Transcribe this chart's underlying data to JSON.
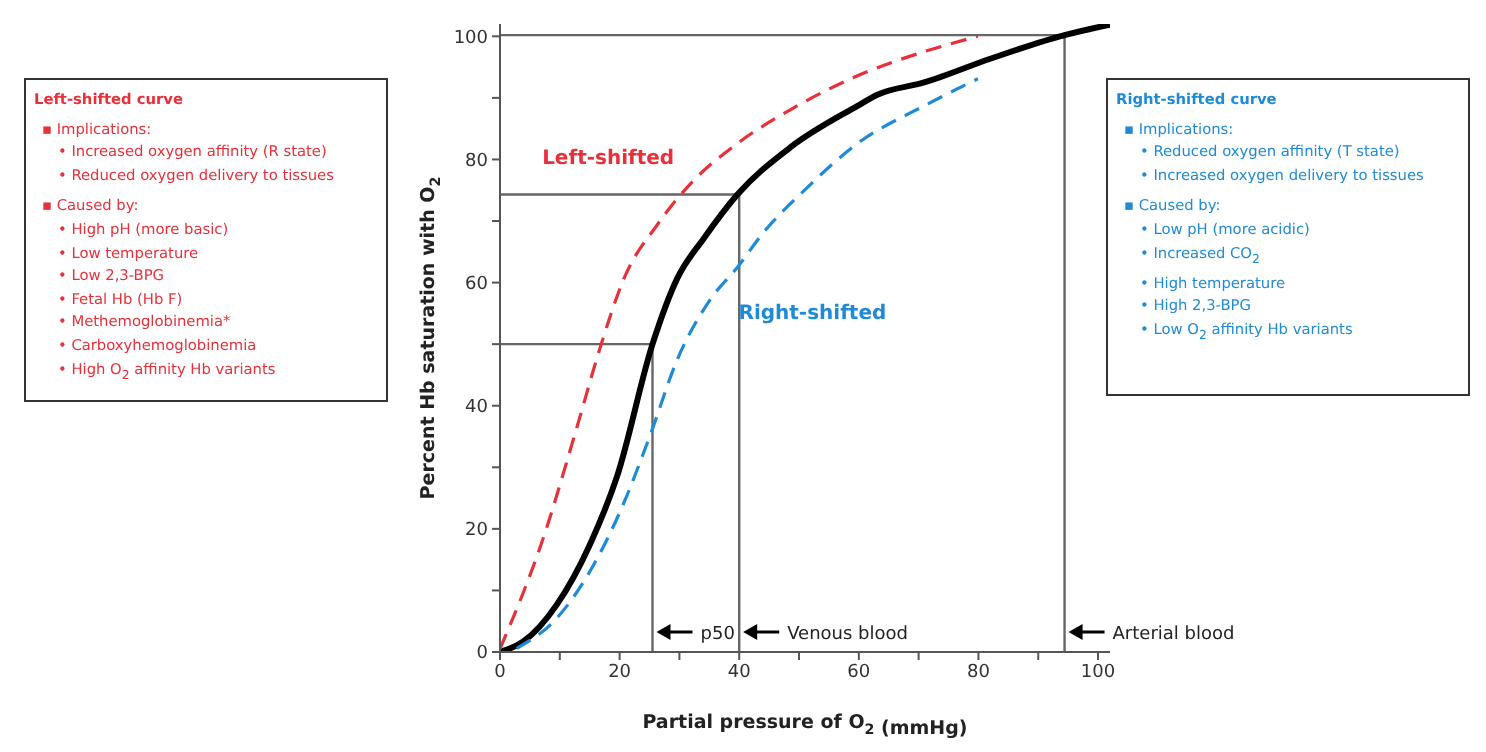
{
  "chart_data": {
    "type": "line",
    "xlabel": "Partial pressure of O$_{2}$ (mmHg)",
    "ylabel": "Percent Hb saturation with O$_{2}$",
    "xlim": [
      0,
      102
    ],
    "xticks": [
      0,
      {
        "value": 10,
        "label": null
      },
      20,
      {
        "value": 30,
        "label": null
      },
      40,
      {
        "value": 50,
        "label": null
      },
      60,
      {
        "value": 70,
        "label": null
      },
      80,
      {
        "value": 90,
        "label": null
      },
      100
    ],
    "ylim": [
      0,
      102
    ],
    "yticks": [
      0,
      {
        "value": 10,
        "label": null
      },
      20,
      {
        "value": 30,
        "label": null
      },
      40,
      {
        "value": 50,
        "label": null
      },
      60,
      {
        "value": 70,
        "label": null
      },
      80,
      {
        "value": 90,
        "label": null
      },
      100
    ],
    "marker": "none",
    "series": [
      {
        "color": "#000000",
        "line_style": "solid",
        "x": [
          0,
          3.9,
          9.5,
          15.1,
          19.6,
          25.5,
          29.6,
          34.1,
          39.7,
          48.6,
          59.8,
          63.1,
          70.9,
          82.1,
          94.4,
          102
        ],
        "values": [
          0,
          1.7,
          7.7,
          17.6,
          28.6,
          50,
          60.6,
          67.2,
          74.3,
          82,
          88.7,
          90.5,
          92.5,
          96.4,
          100.2,
          101.9
        ]
      },
      {
        "name": "Left-shifted",
        "color": "#e8303a",
        "line_style": "dashed",
        "x": [
          0,
          7.3,
          12.8,
          16.8,
          20.7,
          26.3,
          31.8,
          39.7,
          48.6,
          59.8,
          70.9,
          79.9
        ],
        "values": [
          0.5,
          18.7,
          36.3,
          49.6,
          60.6,
          69.4,
          76,
          82.6,
          88.1,
          93.6,
          97.5,
          100
        ]
      },
      {
        "name": "Right-shifted",
        "color": "#1f8ad6",
        "line_style": "dashed",
        "x": [
          2.8,
          9.5,
          15.1,
          20.7,
          25.1,
          29.6,
          35.2,
          39.7,
          44.1,
          50.8,
          59.8,
          70.9,
          79.9
        ],
        "values": [
          0.6,
          5.5,
          13.2,
          24.2,
          35.2,
          47.4,
          57.3,
          62.5,
          68.2,
          74.9,
          82.6,
          88.7,
          93.1
        ]
      }
    ],
    "ref_lines": [
      {
        "axis": "x",
        "value": 25.5,
        "label": "p50",
        "color": "#666666"
      },
      {
        "axis": "x",
        "value": 40,
        "label": "Venous blood",
        "color": "#666666"
      },
      {
        "axis": "x",
        "value": 94.4,
        "label": "Arterial blood",
        "color": "#666666"
      },
      {
        "axis": "y",
        "value": 50,
        "label": null,
        "color": "#666666"
      },
      {
        "axis": "y",
        "value": 74.3,
        "label": null,
        "color": "#666666"
      },
      {
        "axis": "y",
        "value": 100.2,
        "label": null,
        "color": "#666666"
      }
    ],
    "annotations": [
      "Left-shifted curve\n▪ Implications:\n  • Increased oxygen affinity (R state)\n  • Reduced oxygen delivery to tissues\n▪ Caused by:\n  • High pH (more basic)\n  • Low temperature\n  • Low 2,3-BPG\n  • Fetal Hb (Hb F)\n  • Methemoglobinemia*\n  • Carboxyhemoglobinemia\n  • High O$_{2}$ affinity Hb variants",
      "Right-shifted curve\n▪ Implications:\n  • Reduced oxygen affinity (T state)\n  • Increased oxygen delivery to tissues\n▪ Caused by:\n  • Low pH (more acidic)\n  • Increased CO$_{2}$\n  • High temperature\n  • High 2,3-BPG\n  • Low O$_{2}$ affinity Hb variants"
    ]
  }
}
